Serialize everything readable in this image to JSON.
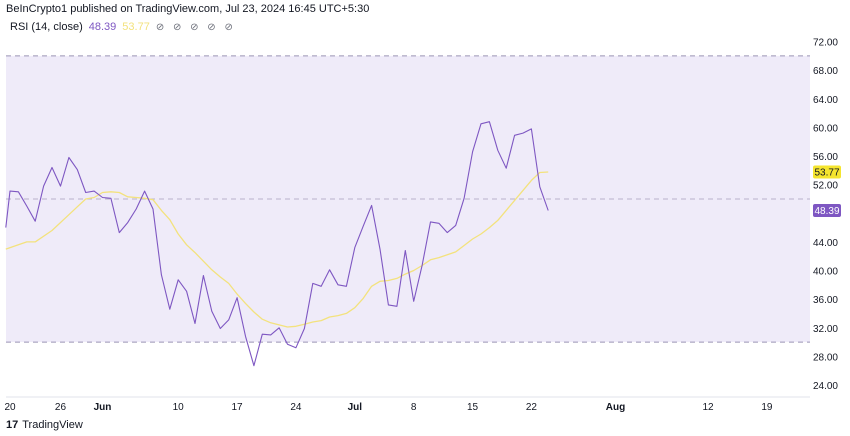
{
  "header": {
    "attribution": "BeInCrypto1 published on TradingView.com, Jul 23, 2024 16:45 UTC+5:30"
  },
  "legend": {
    "indicator": "RSI (14, close)",
    "rsi_value": "48.39",
    "ma_value": "53.77",
    "icons": "⊘ ⊘ ⊘ ⊘ ⊘"
  },
  "footer": {
    "logo": "17",
    "brand": "TradingView"
  },
  "colors": {
    "rsi_line": "#7e57c2",
    "ma_line": "#f3e27d",
    "band_fill": "#efebf9",
    "band_border": "#9a93b5",
    "rsi_badge": "#7e57c2",
    "ma_badge": "#f5e52e"
  },
  "chart_data": {
    "type": "line",
    "y_axis_side": "right",
    "ylim": [
      22,
      73
    ],
    "y_ticks": [
      24,
      28,
      32,
      36,
      40,
      44,
      52,
      56,
      60,
      64,
      68,
      72
    ],
    "y_tick_labels": [
      "24.00",
      "28.00",
      "32.00",
      "36.00",
      "40.00",
      "44.00",
      "52.00",
      "56.00",
      "60.00",
      "64.00",
      "68.00",
      "72.00"
    ],
    "band_upper": 70,
    "band_middle": 50,
    "band_lower": 30,
    "x_ticks": [
      {
        "label": "20",
        "day": 0
      },
      {
        "label": "26",
        "day": 6
      },
      {
        "label": "Jun",
        "day": 11
      },
      {
        "label": "10",
        "day": 20
      },
      {
        "label": "17",
        "day": 27
      },
      {
        "label": "24",
        "day": 34
      },
      {
        "label": "Jul",
        "day": 41
      },
      {
        "label": "8",
        "day": 48
      },
      {
        "label": "15",
        "day": 55
      },
      {
        "label": "22",
        "day": 62
      },
      {
        "label": "Aug",
        "day": 72
      },
      {
        "label": "12",
        "day": 83
      },
      {
        "label": "19",
        "day": 90
      }
    ],
    "badges": [
      {
        "series": "MA",
        "value": 53.77,
        "label": "53.77"
      },
      {
        "series": "RSI",
        "value": 48.39,
        "label": "48.39"
      }
    ],
    "series": [
      {
        "key": "rsi",
        "values": [
          [
            -0.5,
            46.0
          ],
          [
            0,
            51.1
          ],
          [
            1,
            51.0
          ],
          [
            2,
            49.0
          ],
          [
            3,
            46.9
          ],
          [
            4,
            51.8
          ],
          [
            5,
            54.4
          ],
          [
            6,
            51.8
          ],
          [
            7,
            55.8
          ],
          [
            8,
            54.1
          ],
          [
            9,
            50.9
          ],
          [
            10,
            51.1
          ],
          [
            11,
            50.2
          ],
          [
            12,
            50.1
          ],
          [
            13,
            45.3
          ],
          [
            14,
            46.7
          ],
          [
            15,
            48.6
          ],
          [
            16,
            51.1
          ],
          [
            17,
            48.6
          ],
          [
            18,
            39.4
          ],
          [
            19,
            34.6
          ],
          [
            20,
            38.7
          ],
          [
            21,
            37.1
          ],
          [
            22,
            32.6
          ],
          [
            23,
            39.3
          ],
          [
            24,
            34.3
          ],
          [
            25,
            31.9
          ],
          [
            26,
            33.1
          ],
          [
            27,
            36.2
          ],
          [
            28,
            30.8
          ],
          [
            29,
            26.7
          ],
          [
            30,
            31.1
          ],
          [
            31,
            31.0
          ],
          [
            32,
            32.0
          ],
          [
            33,
            29.7
          ],
          [
            34,
            29.2
          ],
          [
            35,
            31.9
          ],
          [
            36,
            38.2
          ],
          [
            37,
            37.8
          ],
          [
            38,
            40.1
          ],
          [
            39,
            38.0
          ],
          [
            40,
            37.8
          ],
          [
            41,
            43.2
          ],
          [
            42,
            46.2
          ],
          [
            43,
            49.1
          ],
          [
            44,
            43.0
          ],
          [
            45,
            35.2
          ],
          [
            46,
            35.0
          ],
          [
            47,
            42.8
          ],
          [
            48,
            35.7
          ],
          [
            49,
            40.7
          ],
          [
            50,
            46.8
          ],
          [
            51,
            46.6
          ],
          [
            52,
            45.3
          ],
          [
            53,
            46.3
          ],
          [
            54,
            50.1
          ],
          [
            55,
            56.6
          ],
          [
            56,
            60.5
          ],
          [
            57,
            60.8
          ],
          [
            58,
            56.8
          ],
          [
            59,
            54.3
          ],
          [
            60,
            58.9
          ],
          [
            61,
            59.2
          ],
          [
            62,
            59.8
          ],
          [
            63,
            51.7
          ],
          [
            64,
            48.39
          ]
        ]
      },
      {
        "key": "ma",
        "values": [
          [
            -0.5,
            43.0
          ],
          [
            1,
            43.6
          ],
          [
            2,
            44.0
          ],
          [
            3,
            44.0
          ],
          [
            5,
            45.6
          ],
          [
            7,
            47.8
          ],
          [
            8,
            48.9
          ],
          [
            9,
            50.0
          ],
          [
            10,
            50.2
          ],
          [
            11,
            50.9
          ],
          [
            12,
            51.0
          ],
          [
            13,
            50.9
          ],
          [
            14,
            50.3
          ],
          [
            15,
            50.2
          ],
          [
            16,
            50.1
          ],
          [
            17,
            49.9
          ],
          [
            18,
            48.4
          ],
          [
            19,
            47.1
          ],
          [
            20,
            45.1
          ],
          [
            21,
            43.6
          ],
          [
            22,
            42.5
          ],
          [
            23,
            41.3
          ],
          [
            24,
            40.1
          ],
          [
            25,
            39.1
          ],
          [
            26,
            38.2
          ],
          [
            27,
            36.7
          ],
          [
            28,
            35.4
          ],
          [
            29,
            34.2
          ],
          [
            30,
            33.2
          ],
          [
            31,
            32.7
          ],
          [
            32,
            32.4
          ],
          [
            33,
            32.1
          ],
          [
            34,
            32.2
          ],
          [
            35,
            32.5
          ],
          [
            36,
            32.8
          ],
          [
            37,
            33.0
          ],
          [
            38,
            33.5
          ],
          [
            39,
            33.7
          ],
          [
            40,
            34.0
          ],
          [
            41,
            34.8
          ],
          [
            42,
            36.1
          ],
          [
            43,
            37.8
          ],
          [
            44,
            38.5
          ],
          [
            45,
            38.6
          ],
          [
            46,
            38.9
          ],
          [
            47,
            39.5
          ],
          [
            48,
            40.0
          ],
          [
            49,
            40.7
          ],
          [
            50,
            41.5
          ],
          [
            51,
            41.8
          ],
          [
            52,
            42.2
          ],
          [
            53,
            42.6
          ],
          [
            54,
            43.5
          ],
          [
            55,
            44.4
          ],
          [
            56,
            45.1
          ],
          [
            57,
            46.0
          ],
          [
            58,
            47.0
          ],
          [
            59,
            48.4
          ],
          [
            60,
            49.8
          ],
          [
            61,
            51.2
          ],
          [
            62,
            52.6
          ],
          [
            63,
            53.7
          ],
          [
            64,
            53.77
          ]
        ]
      }
    ]
  }
}
